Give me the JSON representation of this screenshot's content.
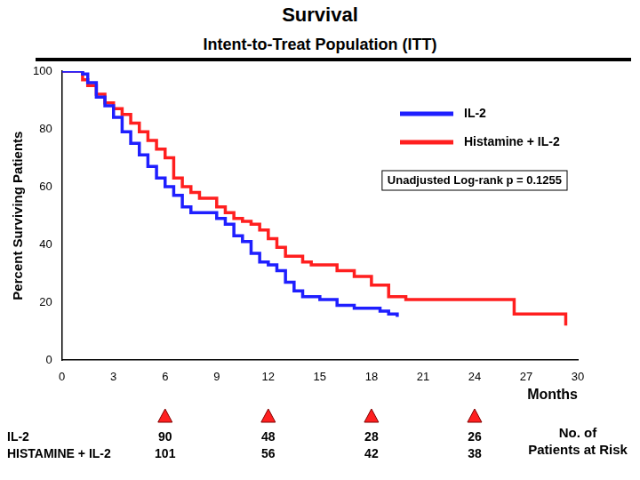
{
  "chart_data": {
    "type": "line",
    "title": "Survival",
    "subtitle": "Intent-to-Treat Population (ITT)",
    "y_label": "Percent Surviving Patients",
    "x_label": "Months",
    "xlim": [
      0,
      30
    ],
    "xticks": [
      0,
      3,
      6,
      9,
      12,
      15,
      18,
      21,
      24,
      27,
      30
    ],
    "ylim": [
      0,
      100
    ],
    "yticks": [
      0,
      20,
      40,
      60,
      80,
      100
    ],
    "grid": false,
    "legend": "upper right",
    "series": [
      {
        "name": "IL-2",
        "color": "#1f1fff",
        "line_style": "step",
        "x": [
          0,
          1.2,
          1.5,
          2,
          2.5,
          3,
          3.5,
          4,
          4.5,
          5,
          5.5,
          6,
          6.5,
          7,
          7.5,
          9,
          9.5,
          10,
          10.5,
          11,
          11.5,
          12,
          12.5,
          13,
          13.5,
          14,
          15,
          16,
          17,
          18.5,
          19,
          19.5
        ],
        "values": [
          100,
          99,
          96,
          91,
          88,
          84,
          79,
          75,
          71,
          67,
          63,
          60,
          57,
          53,
          51,
          49,
          47,
          43,
          41,
          37,
          34,
          33,
          31,
          27,
          24,
          22,
          21,
          19,
          18,
          17,
          16,
          15
        ]
      },
      {
        "name": "Histamine + IL-2",
        "color": "#ff1f1f",
        "line_style": "step",
        "x": [
          0,
          1.2,
          1.5,
          2,
          2.5,
          3,
          3.5,
          4,
          4.5,
          5,
          5.5,
          6,
          6.5,
          7,
          7.5,
          8,
          9,
          9.5,
          10,
          10.5,
          11,
          11.5,
          12,
          12.5,
          13,
          14,
          14.5,
          16,
          17,
          18,
          19,
          20,
          26.3,
          29.3
        ],
        "values": [
          100,
          97,
          95,
          92,
          89,
          87,
          85,
          82,
          79,
          76,
          73,
          70,
          63,
          60,
          58,
          56,
          53,
          51,
          49,
          48,
          47,
          45,
          42,
          39,
          36,
          34,
          33,
          31,
          29,
          26,
          22,
          21,
          16,
          12
        ]
      }
    ],
    "annotations": [
      "Unadjusted Log-rank p = 0.1255"
    ],
    "risk_table": {
      "title": "No. of Patients at Risk",
      "x": [
        6,
        12,
        18,
        24
      ],
      "marker": "triangle",
      "color": "#ff2020",
      "rows": [
        {
          "name": "IL-2",
          "values": [
            90,
            48,
            28,
            26
          ]
        },
        {
          "name": "HISTAMINE + IL-2",
          "values": [
            101,
            56,
            42,
            38
          ]
        }
      ]
    }
  }
}
